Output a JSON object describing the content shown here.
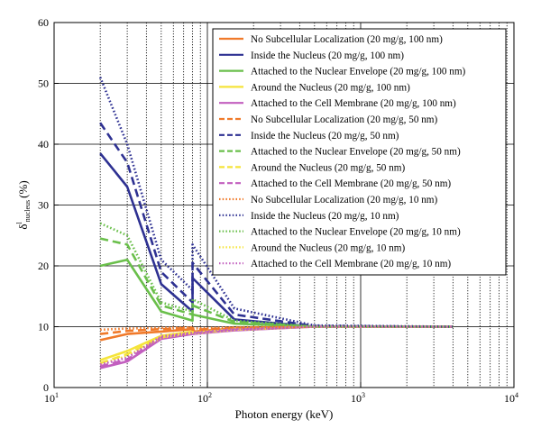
{
  "chart_data": {
    "type": "line",
    "xscale": "log",
    "xlim": [
      10,
      10000
    ],
    "ylim": [
      0,
      60
    ],
    "xlabel": "Photon energy (keV)",
    "ylabel_main": "δ",
    "ylabel_sup": "l",
    "ylabel_sub": "nucleus",
    "ylabel_unit": "(%)",
    "xticks": [
      {
        "v": 10,
        "base": "10",
        "exp": "1"
      },
      {
        "v": 100,
        "base": "10",
        "exp": "2"
      },
      {
        "v": 1000,
        "base": "10",
        "exp": "3"
      },
      {
        "v": 10000,
        "base": "10",
        "exp": "4"
      }
    ],
    "yticks": [
      0,
      10,
      20,
      30,
      40,
      50,
      60
    ],
    "grid": {
      "y": true,
      "x_minor_dotted": true,
      "x_major_solid": true
    },
    "legend_position": "top-right",
    "colors": {
      "none": "#f07a2a",
      "inside": "#2e3192",
      "envelope": "#6abf4b",
      "around": "#f5e43a",
      "membrane": "#c25fbf"
    },
    "series": [
      {
        "name": "No Subcellular Localization (20 mg/g, 100 nm)",
        "group": "none",
        "dash": "solid",
        "x": [
          20,
          30,
          50,
          80,
          80,
          150,
          500,
          4000
        ],
        "y": [
          7.8,
          8.8,
          9.2,
          9.6,
          9.2,
          9.7,
          10.0,
          10.0
        ]
      },
      {
        "name": "Inside the Nucleus (20 mg/g, 100 nm)",
        "group": "inside",
        "dash": "solid",
        "x": [
          20,
          30,
          50,
          80,
          80,
          150,
          500,
          4000
        ],
        "y": [
          38.5,
          33.0,
          17.0,
          12.5,
          18.0,
          11.2,
          10.0,
          10.0
        ]
      },
      {
        "name": "Attached to the Nuclear Envelope (20 mg/g, 100 nm)",
        "group": "envelope",
        "dash": "solid",
        "x": [
          20,
          30,
          50,
          80,
          80,
          150,
          500,
          4000
        ],
        "y": [
          20.0,
          21.0,
          12.5,
          11.0,
          12.0,
          10.5,
          10.0,
          10.0
        ]
      },
      {
        "name": "Around the Nucleus (20 mg/g, 100 nm)",
        "group": "around",
        "dash": "solid",
        "x": [
          20,
          30,
          50,
          80,
          80,
          150,
          500,
          4000
        ],
        "y": [
          4.5,
          6.0,
          8.5,
          9.2,
          9.0,
          9.6,
          10.0,
          10.0
        ]
      },
      {
        "name": "Attached to the Cell Membrane (20 mg/g, 100 nm)",
        "group": "membrane",
        "dash": "solid",
        "x": [
          20,
          30,
          50,
          80,
          80,
          150,
          500,
          4000
        ],
        "y": [
          3.2,
          4.3,
          8.0,
          8.8,
          8.8,
          9.4,
          10.0,
          10.0
        ]
      },
      {
        "name": "No Subcellular Localization (20 mg/g, 50 nm)",
        "group": "none",
        "dash": "dashed",
        "x": [
          20,
          30,
          50,
          80,
          80,
          150,
          500,
          4000
        ],
        "y": [
          8.8,
          9.3,
          9.6,
          9.8,
          9.5,
          9.8,
          10.0,
          10.0
        ]
      },
      {
        "name": "Inside the Nucleus (20 mg/g, 50 nm)",
        "group": "inside",
        "dash": "dashed",
        "x": [
          20,
          30,
          50,
          80,
          80,
          150,
          500,
          4000
        ],
        "y": [
          43.5,
          37.0,
          19.0,
          14.0,
          20.5,
          12.0,
          10.1,
          10.0
        ]
      },
      {
        "name": "Attached to the Nuclear Envelope (20 mg/g, 50 nm)",
        "group": "envelope",
        "dash": "dashed",
        "x": [
          20,
          30,
          50,
          80,
          80,
          150,
          500,
          4000
        ],
        "y": [
          24.5,
          23.5,
          13.5,
          12.0,
          13.5,
          10.8,
          10.0,
          10.0
        ]
      },
      {
        "name": "Around the Nucleus (20 mg/g, 50 nm)",
        "group": "around",
        "dash": "dashed",
        "x": [
          20,
          30,
          50,
          80,
          80,
          150,
          500,
          4000
        ],
        "y": [
          4.0,
          5.5,
          8.3,
          9.0,
          8.9,
          9.5,
          10.0,
          10.0
        ]
      },
      {
        "name": "Attached to the Cell Membrane (20 mg/g, 50 nm)",
        "group": "membrane",
        "dash": "dashed",
        "x": [
          20,
          30,
          50,
          80,
          80,
          150,
          500,
          4000
        ],
        "y": [
          3.5,
          4.6,
          8.2,
          8.9,
          8.9,
          9.5,
          10.0,
          10.0
        ]
      },
      {
        "name": "No Subcellular Localization (20 mg/g, 10 nm)",
        "group": "none",
        "dash": "dotted",
        "x": [
          20,
          30,
          50,
          80,
          80,
          150,
          500,
          4000
        ],
        "y": [
          9.5,
          9.7,
          9.8,
          9.9,
          9.7,
          9.9,
          10.0,
          10.0
        ]
      },
      {
        "name": "Inside the Nucleus (20 mg/g, 10 nm)",
        "group": "inside",
        "dash": "dotted",
        "x": [
          20,
          30,
          50,
          80,
          80,
          150,
          500,
          4000
        ],
        "y": [
          51.0,
          40.0,
          21.0,
          16.0,
          23.5,
          13.0,
          10.2,
          10.0
        ]
      },
      {
        "name": "Attached to the Nuclear Envelope (20 mg/g, 10 nm)",
        "group": "envelope",
        "dash": "dotted",
        "x": [
          20,
          30,
          50,
          80,
          80,
          150,
          500,
          4000
        ],
        "y": [
          27.0,
          25.0,
          14.0,
          12.5,
          14.5,
          11.0,
          10.0,
          10.0
        ]
      },
      {
        "name": "Around the Nucleus (20 mg/g, 10 nm)",
        "group": "around",
        "dash": "dotted",
        "x": [
          20,
          30,
          50,
          80,
          80,
          150,
          500,
          4000
        ],
        "y": [
          3.8,
          5.2,
          8.2,
          9.0,
          8.9,
          9.5,
          10.0,
          10.0
        ]
      },
      {
        "name": "Attached to the Cell Membrane (20 mg/g, 10 nm)",
        "group": "membrane",
        "dash": "dotted",
        "x": [
          20,
          30,
          50,
          80,
          80,
          150,
          500,
          4000
        ],
        "y": [
          3.8,
          4.9,
          8.4,
          9.0,
          9.0,
          9.6,
          10.0,
          10.0
        ]
      }
    ]
  }
}
